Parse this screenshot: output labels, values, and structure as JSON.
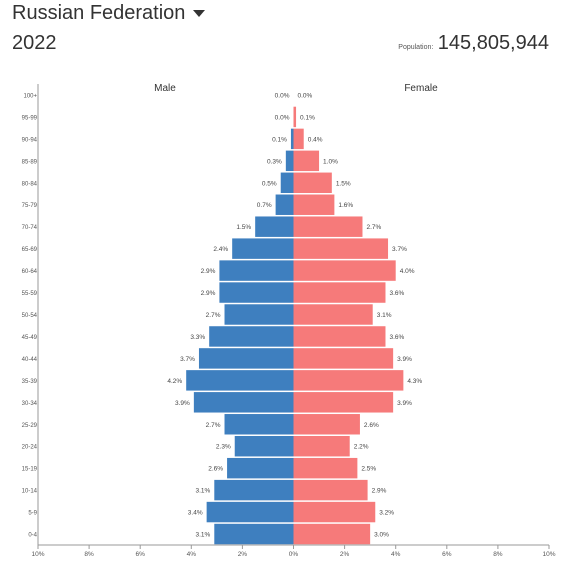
{
  "header": {
    "country": "Russian Federation",
    "year": "2022",
    "population_label": "Population:",
    "population_value": "145,805,944"
  },
  "chart_data": {
    "type": "bar",
    "orientation": "horizontal-diverging",
    "legend_left": "Male",
    "legend_right": "Female",
    "categories": [
      "0-4",
      "5-9",
      "10-14",
      "15-19",
      "20-24",
      "25-29",
      "30-34",
      "35-39",
      "40-44",
      "45-49",
      "50-54",
      "55-59",
      "60-64",
      "65-69",
      "70-74",
      "75-79",
      "80-84",
      "85-89",
      "90-94",
      "95-99",
      "100+"
    ],
    "series": [
      {
        "name": "Male",
        "values": [
          3.1,
          3.4,
          3.1,
          2.6,
          2.3,
          2.7,
          3.9,
          4.2,
          3.7,
          3.3,
          2.7,
          2.9,
          2.9,
          2.4,
          1.5,
          0.7,
          0.5,
          0.3,
          0.1,
          0.0,
          0.0
        ],
        "labels": [
          "3.1%",
          "3.4%",
          "3.1%",
          "2.6%",
          "2.3%",
          "2.7%",
          "3.9%",
          "4.2%",
          "3.7%",
          "3.3%",
          "2.7%",
          "2.9%",
          "2.9%",
          "2.4%",
          "1.5%",
          "0.7%",
          "0.5%",
          "0.3%",
          "0.1%",
          "0.0%",
          "0.0%"
        ]
      },
      {
        "name": "Female",
        "values": [
          3.0,
          3.2,
          2.9,
          2.5,
          2.2,
          2.6,
          3.9,
          4.3,
          3.9,
          3.6,
          3.1,
          3.6,
          4.0,
          3.7,
          2.7,
          1.6,
          1.5,
          1.0,
          0.4,
          0.1,
          0.0
        ],
        "labels": [
          "3.0%",
          "3.2%",
          "2.9%",
          "2.5%",
          "2.2%",
          "2.6%",
          "3.9%",
          "4.3%",
          "3.9%",
          "3.6%",
          "3.1%",
          "3.6%",
          "4.0%",
          "3.7%",
          "2.7%",
          "1.6%",
          "1.5%",
          "1.0%",
          "0.4%",
          "0.1%",
          "0.0%"
        ]
      }
    ],
    "x_ticks": [
      "10%",
      "8%",
      "6%",
      "4%",
      "2%",
      "0%",
      "2%",
      "4%",
      "6%",
      "8%",
      "10%"
    ],
    "xlim": [
      -10,
      10
    ],
    "colors": {
      "male": "#3e7fbf",
      "female": "#f67a7a"
    },
    "grid": false
  }
}
